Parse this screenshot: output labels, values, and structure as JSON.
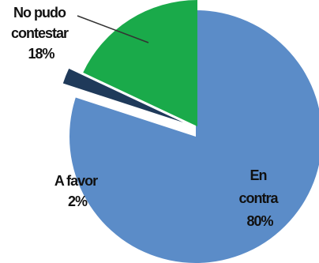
{
  "chart_data": {
    "type": "pie",
    "title": "",
    "exploded": true,
    "slices": [
      {
        "label": "En contra",
        "value": 80,
        "percent_label": "80%",
        "color": "#5b8cc8",
        "label_lines": [
          "En",
          "contra",
          "80%"
        ]
      },
      {
        "label": "A favor",
        "value": 2,
        "percent_label": "2%",
        "color": "#1f3a5a",
        "label_lines": [
          "A favor",
          "2%"
        ]
      },
      {
        "label": "No pudo contestar",
        "value": 18,
        "percent_label": "18%",
        "color": "#1aaa4a",
        "label_lines": [
          "No pudo",
          "contestar",
          "18%"
        ]
      }
    ]
  }
}
